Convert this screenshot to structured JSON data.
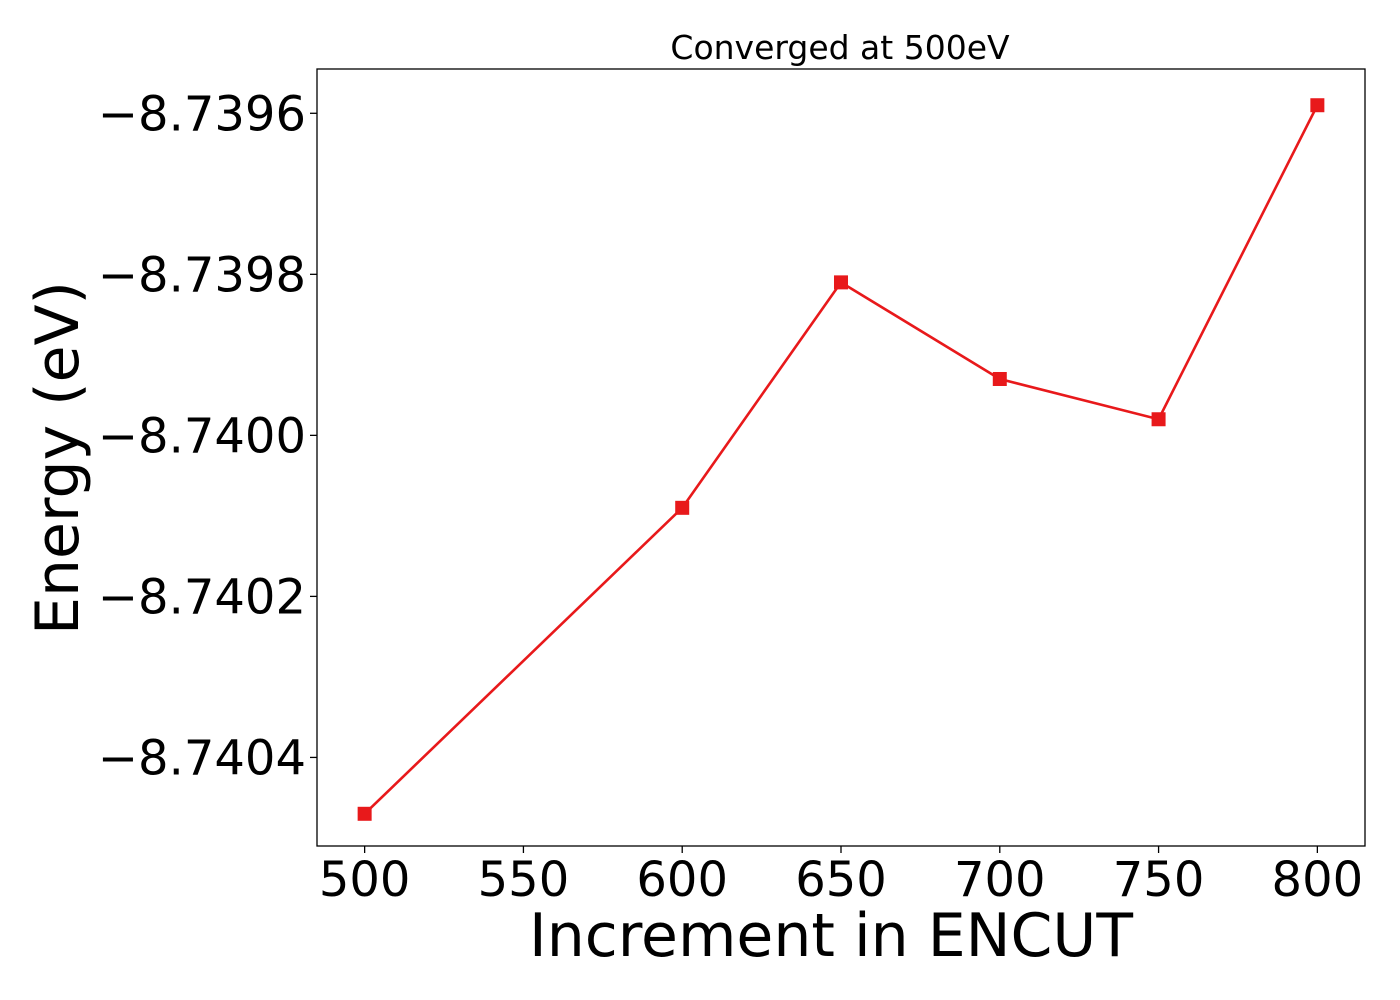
{
  "chart_data": {
    "type": "line",
    "title": "Converged at 500eV",
    "xlabel": "Increment in ENCUT",
    "ylabel": "Energy (eV)",
    "x": [
      500,
      600,
      650,
      700,
      750,
      800
    ],
    "series": [
      {
        "values": [
          -8.74047,
          -8.74009,
          -8.73981,
          -8.73993,
          -8.73998,
          -8.73959
        ],
        "color": "#e8191b",
        "marker": "square"
      }
    ],
    "xticks": [
      500,
      550,
      600,
      650,
      700,
      750,
      800
    ],
    "xtick_labels": [
      "500",
      "550",
      "600",
      "650",
      "700",
      "750",
      "800"
    ],
    "yticks": [
      -8.7396,
      -8.7398,
      -8.74,
      -8.7402,
      -8.7404
    ],
    "ytick_labels": [
      "−8.7396",
      "−8.7398",
      "−8.7400",
      "−8.7402",
      "−8.7404"
    ],
    "xlim": [
      485,
      815
    ],
    "ylim": [
      -8.74051,
      -8.739545
    ],
    "grid": false,
    "legend": "none"
  }
}
